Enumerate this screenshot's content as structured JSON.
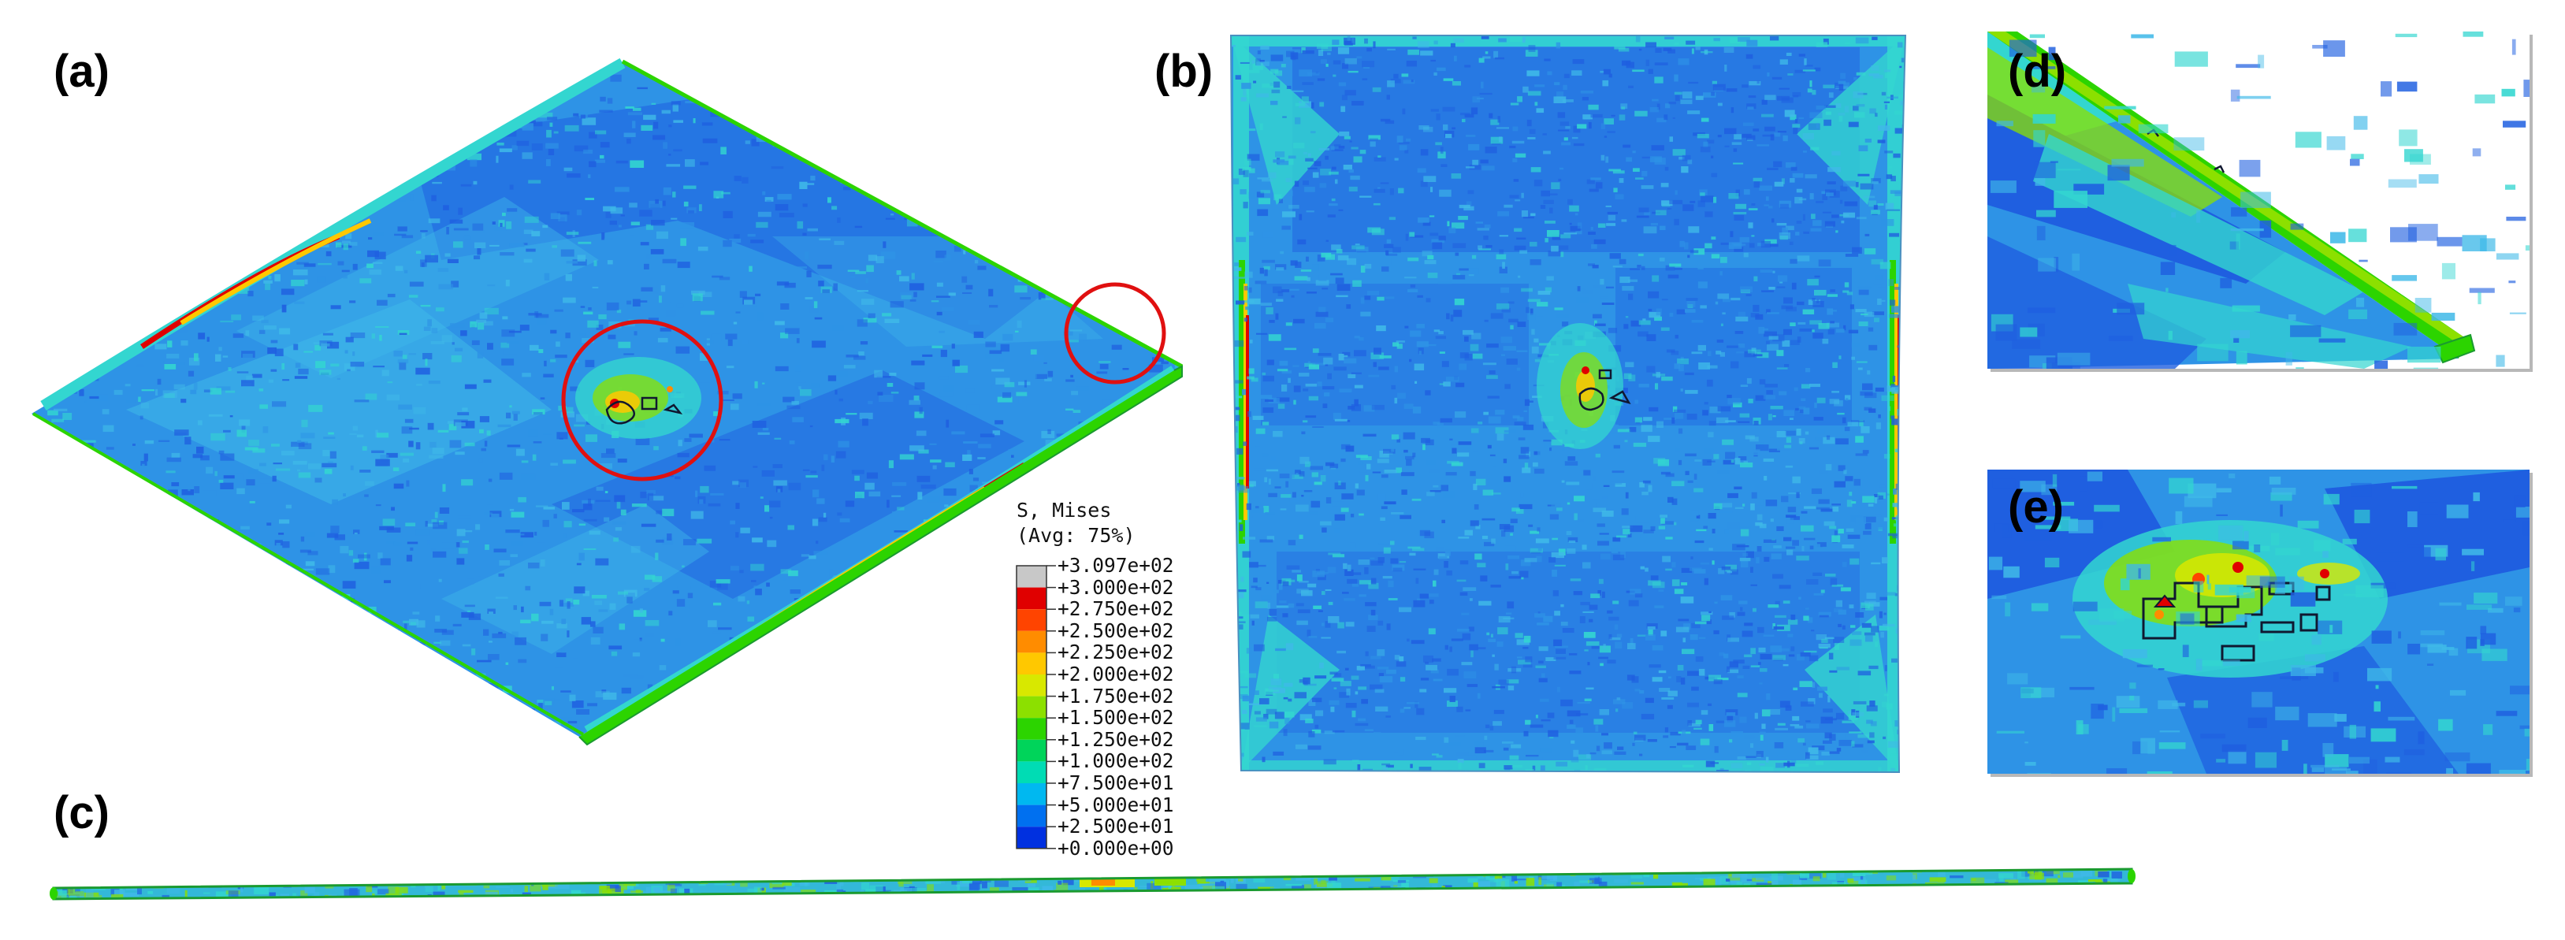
{
  "panels": {
    "a": {
      "label": "(a)"
    },
    "b": {
      "label": "(b)"
    },
    "c": {
      "label": "(c)"
    },
    "d": {
      "label": "(d)"
    },
    "e": {
      "label": "(e)"
    }
  },
  "legend": {
    "title_line1": "S, Mises",
    "title_line2": "(Avg: 75%)",
    "levels": [
      {
        "label": "+3.097e+02",
        "color": "#c8c8c8"
      },
      {
        "label": "+3.000e+02",
        "color": "#e00000"
      },
      {
        "label": "+2.750e+02",
        "color": "#ff4400"
      },
      {
        "label": "+2.500e+02",
        "color": "#ff8c00"
      },
      {
        "label": "+2.250e+02",
        "color": "#ffc800"
      },
      {
        "label": "+2.000e+02",
        "color": "#d8e800"
      },
      {
        "label": "+1.750e+02",
        "color": "#8ce000"
      },
      {
        "label": "+1.500e+02",
        "color": "#2cd400"
      },
      {
        "label": "+1.250e+02",
        "color": "#00d45a"
      },
      {
        "label": "+1.000e+02",
        "color": "#00dcb4"
      },
      {
        "label": "+7.500e+01",
        "color": "#00b8f0"
      },
      {
        "label": "+5.000e+01",
        "color": "#0070f0"
      },
      {
        "label": "+2.500e+01",
        "color": "#0030e0"
      },
      {
        "label": "+0.000e+00",
        "color": "#0000c8"
      }
    ]
  },
  "colors": {
    "base_field": "#2e93e6",
    "light_field": "#3fb9e8",
    "dark_field": "#1f5fe0",
    "cyan_field": "#33d6d0",
    "highlight_circle": "#e01010",
    "contour_line": "#101830"
  }
}
